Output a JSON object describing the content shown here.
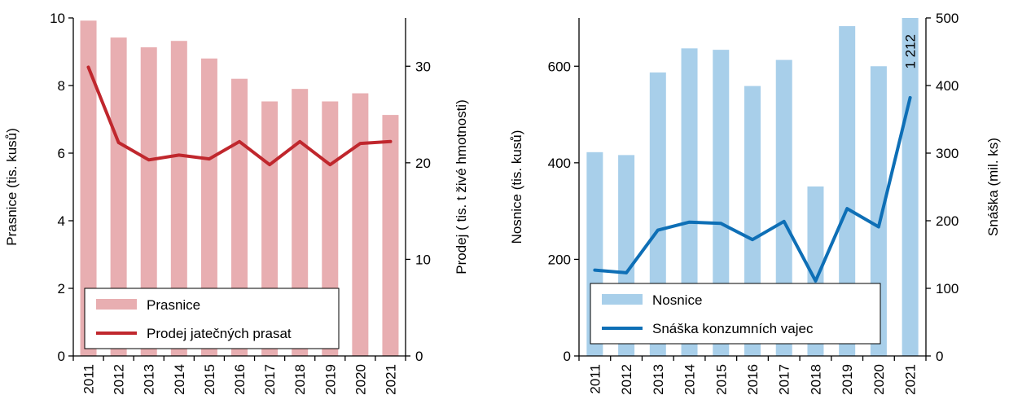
{
  "chart_data": [
    {
      "type": "bar+line",
      "categories": [
        "2011",
        "2012",
        "2013",
        "2014",
        "2015",
        "2016",
        "2017",
        "2018",
        "2019",
        "2020",
        "2021"
      ],
      "series": [
        {
          "name": "Prasnice",
          "kind": "bar",
          "axis": "left",
          "values": [
            9.92,
            9.42,
            9.13,
            9.32,
            8.8,
            8.2,
            7.53,
            7.9,
            7.53,
            7.77,
            7.13
          ]
        },
        {
          "name": "Prodej jatečných prasat",
          "kind": "line",
          "axis": "right",
          "values": [
            29.9,
            22.1,
            20.3,
            20.8,
            20.4,
            22.2,
            19.8,
            22.2,
            19.8,
            22.0,
            22.2
          ]
        }
      ],
      "ylabel": "Prasnice (tis. kusů)",
      "ylabel_right": "Prodej  ( tis. t živé hmotnosti)",
      "ylim": [
        0,
        10
      ],
      "ylim_right": [
        0,
        35
      ],
      "yticks": [
        "0",
        "2",
        "4",
        "6",
        "8",
        "10"
      ],
      "yticks_right": [
        "0",
        "10",
        "20",
        "30"
      ],
      "colors": {
        "bar": "#e8aeb1",
        "line": "#c0272d"
      },
      "legend": "bottom-left"
    },
    {
      "type": "bar+line",
      "categories": [
        "2011",
        "2012",
        "2013",
        "2014",
        "2015",
        "2016",
        "2017",
        "2018",
        "2019",
        "2020",
        "2021"
      ],
      "series": [
        {
          "name": "Nosnice",
          "kind": "bar",
          "axis": "left",
          "values": [
            422,
            416,
            587,
            637,
            634,
            559,
            613,
            351,
            683,
            600,
            700
          ]
        },
        {
          "name": "Snáška konzumních vajec",
          "kind": "line",
          "axis": "right",
          "values": [
            127,
            123,
            186,
            198,
            196,
            172,
            199,
            111,
            218,
            191,
            382
          ]
        }
      ],
      "ylabel": "Nosnice (tis. kusů)",
      "ylabel_right": "Snáška (mil. ks)",
      "ylim": [
        0,
        700
      ],
      "ylim_right": [
        0,
        500
      ],
      "yticks": [
        "0",
        "200",
        "400",
        "600"
      ],
      "yticks_right": [
        "0",
        "100",
        "200",
        "300",
        "400",
        "500"
      ],
      "data_label": "1 212",
      "colors": {
        "bar": "#a8cfea",
        "line": "#0e6fb6"
      },
      "legend": "bottom-left"
    }
  ]
}
